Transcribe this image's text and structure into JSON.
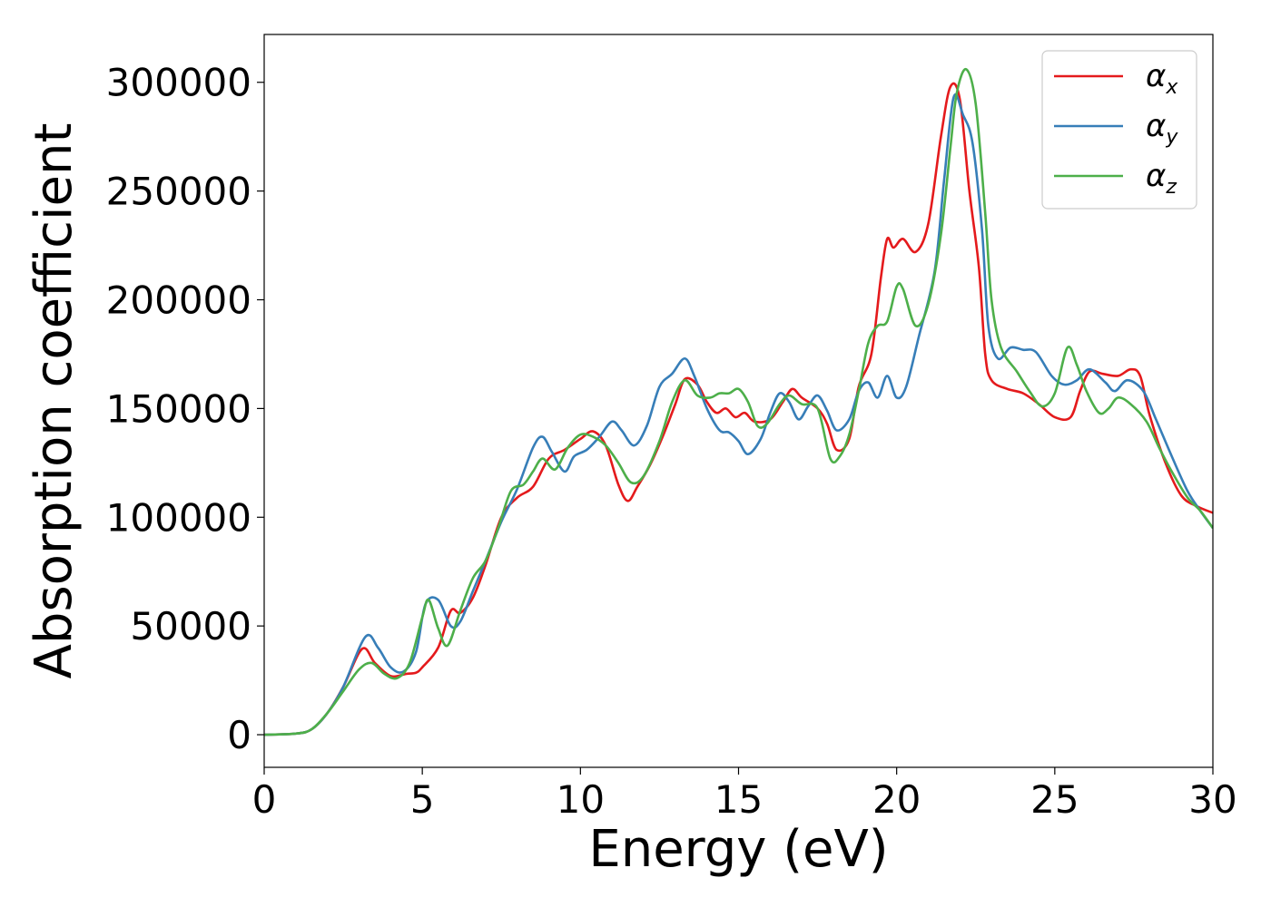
{
  "chart_data": {
    "type": "line",
    "title": "",
    "xlabel": "Energy (eV)",
    "ylabel": "Absorption coefficient",
    "xlim": [
      0,
      30
    ],
    "ylim": [
      -15000,
      322000
    ],
    "xticks": [
      0,
      5,
      10,
      15,
      20,
      25,
      30
    ],
    "yticks": [
      0,
      50000,
      100000,
      150000,
      200000,
      250000,
      300000
    ],
    "xtick_labels": [
      "0",
      "5",
      "10",
      "15",
      "20",
      "25",
      "30"
    ],
    "ytick_labels": [
      "0",
      "50000",
      "100000",
      "150000",
      "200000",
      "250000",
      "300000"
    ],
    "grid": false,
    "legend_position": "top-right",
    "series": [
      {
        "name": "α_x",
        "label_base": "α",
        "label_sub": "x",
        "color": "#e41a1c",
        "points": [
          [
            0,
            0
          ],
          [
            1,
            500
          ],
          [
            1.5,
            2500
          ],
          [
            2,
            10000
          ],
          [
            2.5,
            22000
          ],
          [
            3.1,
            39500
          ],
          [
            3.5,
            33000
          ],
          [
            4,
            27000
          ],
          [
            4.5,
            28000
          ],
          [
            4.8,
            28500
          ],
          [
            5,
            31000
          ],
          [
            5.5,
            40000
          ],
          [
            5.9,
            57000
          ],
          [
            6.2,
            56000
          ],
          [
            6.6,
            63000
          ],
          [
            7,
            78000
          ],
          [
            7.5,
            100000
          ],
          [
            8,
            109000
          ],
          [
            8.5,
            114000
          ],
          [
            9,
            127000
          ],
          [
            9.5,
            131000
          ],
          [
            10,
            136000
          ],
          [
            10.4,
            139500
          ],
          [
            10.8,
            133000
          ],
          [
            11.2,
            115000
          ],
          [
            11.5,
            107500
          ],
          [
            11.8,
            114000
          ],
          [
            12.2,
            124000
          ],
          [
            12.6,
            137000
          ],
          [
            13,
            152000
          ],
          [
            13.3,
            163500
          ],
          [
            13.7,
            161000
          ],
          [
            14,
            153000
          ],
          [
            14.3,
            148000
          ],
          [
            14.6,
            150000
          ],
          [
            14.9,
            146000
          ],
          [
            15.2,
            148000
          ],
          [
            15.5,
            144000
          ],
          [
            16,
            145000
          ],
          [
            16.4,
            153000
          ],
          [
            16.7,
            159000
          ],
          [
            17,
            155000
          ],
          [
            17.5,
            150000
          ],
          [
            17.8,
            143000
          ],
          [
            18.1,
            131000
          ],
          [
            18.5,
            136000
          ],
          [
            18.8,
            160000
          ],
          [
            19.2,
            175000
          ],
          [
            19.5,
            210000
          ],
          [
            19.7,
            228000
          ],
          [
            19.9,
            224000
          ],
          [
            20.2,
            228000
          ],
          [
            20.6,
            222000
          ],
          [
            21,
            235000
          ],
          [
            21.4,
            275000
          ],
          [
            21.7,
            298000
          ],
          [
            22,
            292000
          ],
          [
            22.3,
            250000
          ],
          [
            22.6,
            215000
          ],
          [
            22.8,
            175000
          ],
          [
            23,
            163000
          ],
          [
            23.5,
            159000
          ],
          [
            24,
            157000
          ],
          [
            24.5,
            152000
          ],
          [
            25,
            146000
          ],
          [
            25.5,
            146000
          ],
          [
            25.8,
            158000
          ],
          [
            26.1,
            167000
          ],
          [
            26.5,
            166000
          ],
          [
            27,
            165000
          ],
          [
            27.4,
            168000
          ],
          [
            27.7,
            165000
          ],
          [
            28,
            147000
          ],
          [
            28.5,
            125000
          ],
          [
            29,
            110000
          ],
          [
            29.5,
            105000
          ],
          [
            30,
            102000
          ]
        ]
      },
      {
        "name": "α_y",
        "label_base": "α",
        "label_sub": "y",
        "color": "#377eb8",
        "points": [
          [
            0,
            0
          ],
          [
            1,
            500
          ],
          [
            1.5,
            2500
          ],
          [
            2,
            10000
          ],
          [
            2.5,
            22000
          ],
          [
            3.2,
            45000
          ],
          [
            3.6,
            40000
          ],
          [
            4,
            31000
          ],
          [
            4.4,
            29000
          ],
          [
            4.8,
            38000
          ],
          [
            5.1,
            60000
          ],
          [
            5.5,
            62000
          ],
          [
            5.9,
            50000
          ],
          [
            6.2,
            52000
          ],
          [
            6.6,
            66000
          ],
          [
            7,
            80000
          ],
          [
            7.5,
            98000
          ],
          [
            8,
            113000
          ],
          [
            8.5,
            132000
          ],
          [
            8.8,
            137000
          ],
          [
            9.1,
            130000
          ],
          [
            9.5,
            121000
          ],
          [
            9.8,
            128000
          ],
          [
            10.2,
            131000
          ],
          [
            10.6,
            137000
          ],
          [
            11,
            144000
          ],
          [
            11.3,
            140000
          ],
          [
            11.7,
            133000
          ],
          [
            12.1,
            142000
          ],
          [
            12.5,
            160000
          ],
          [
            12.9,
            166000
          ],
          [
            13.3,
            173000
          ],
          [
            13.6,
            165000
          ],
          [
            14,
            150000
          ],
          [
            14.4,
            140000
          ],
          [
            14.7,
            139000
          ],
          [
            15,
            135000
          ],
          [
            15.3,
            129000
          ],
          [
            15.7,
            136000
          ],
          [
            16,
            148000
          ],
          [
            16.3,
            157000
          ],
          [
            16.6,
            153000
          ],
          [
            16.9,
            145000
          ],
          [
            17.2,
            151000
          ],
          [
            17.5,
            156000
          ],
          [
            17.8,
            149000
          ],
          [
            18.1,
            140000
          ],
          [
            18.5,
            145000
          ],
          [
            18.8,
            158000
          ],
          [
            19.1,
            162000
          ],
          [
            19.4,
            155000
          ],
          [
            19.7,
            165000
          ],
          [
            20,
            155000
          ],
          [
            20.3,
            160000
          ],
          [
            20.7,
            183000
          ],
          [
            21.2,
            213000
          ],
          [
            21.5,
            255000
          ],
          [
            21.8,
            293000
          ],
          [
            22.1,
            285000
          ],
          [
            22.4,
            272000
          ],
          [
            22.7,
            232000
          ],
          [
            22.9,
            188000
          ],
          [
            23.2,
            173000
          ],
          [
            23.6,
            178000
          ],
          [
            24,
            177000
          ],
          [
            24.4,
            176000
          ],
          [
            24.9,
            165000
          ],
          [
            25.3,
            161000
          ],
          [
            25.7,
            163000
          ],
          [
            26.1,
            168000
          ],
          [
            26.6,
            162000
          ],
          [
            26.9,
            158000
          ],
          [
            27.3,
            163000
          ],
          [
            27.8,
            158000
          ],
          [
            28.2,
            145000
          ],
          [
            28.7,
            128000
          ],
          [
            29.2,
            112000
          ],
          [
            29.6,
            103000
          ],
          [
            30,
            95000
          ]
        ]
      },
      {
        "name": "α_z",
        "label_base": "α",
        "label_sub": "z",
        "color": "#4daf4a",
        "points": [
          [
            0,
            0
          ],
          [
            1,
            500
          ],
          [
            1.5,
            2500
          ],
          [
            2,
            10000
          ],
          [
            2.5,
            20000
          ],
          [
            3,
            30000
          ],
          [
            3.4,
            33000
          ],
          [
            3.8,
            28000
          ],
          [
            4.2,
            26000
          ],
          [
            4.6,
            33000
          ],
          [
            5,
            54000
          ],
          [
            5.2,
            62000
          ],
          [
            5.5,
            49000
          ],
          [
            5.8,
            41000
          ],
          [
            6.2,
            57000
          ],
          [
            6.6,
            72000
          ],
          [
            7,
            80000
          ],
          [
            7.4,
            95000
          ],
          [
            7.8,
            112000
          ],
          [
            8.2,
            115000
          ],
          [
            8.5,
            121000
          ],
          [
            8.8,
            127000
          ],
          [
            9.2,
            122000
          ],
          [
            9.6,
            132000
          ],
          [
            10,
            138000
          ],
          [
            10.4,
            137000
          ],
          [
            10.8,
            133000
          ],
          [
            11.2,
            125000
          ],
          [
            11.6,
            116000
          ],
          [
            12,
            119000
          ],
          [
            12.5,
            135000
          ],
          [
            12.9,
            153000
          ],
          [
            13.3,
            163000
          ],
          [
            13.7,
            156000
          ],
          [
            14.1,
            155000
          ],
          [
            14.4,
            157000
          ],
          [
            14.7,
            157000
          ],
          [
            15,
            159000
          ],
          [
            15.3,
            153000
          ],
          [
            15.6,
            142000
          ],
          [
            15.9,
            143000
          ],
          [
            16.3,
            152000
          ],
          [
            16.6,
            156000
          ],
          [
            17,
            152000
          ],
          [
            17.5,
            150000
          ],
          [
            17.9,
            127000
          ],
          [
            18.2,
            128000
          ],
          [
            18.5,
            138000
          ],
          [
            18.8,
            158000
          ],
          [
            19.1,
            180000
          ],
          [
            19.4,
            188000
          ],
          [
            19.7,
            190000
          ],
          [
            20,
            206000
          ],
          [
            20.2,
            205000
          ],
          [
            20.6,
            188000
          ],
          [
            21,
            198000
          ],
          [
            21.4,
            230000
          ],
          [
            21.7,
            270000
          ],
          [
            21.9,
            295000
          ],
          [
            22.2,
            306000
          ],
          [
            22.5,
            290000
          ],
          [
            22.8,
            240000
          ],
          [
            23,
            200000
          ],
          [
            23.3,
            178000
          ],
          [
            23.8,
            167000
          ],
          [
            24.2,
            158000
          ],
          [
            24.6,
            151000
          ],
          [
            25,
            157000
          ],
          [
            25.4,
            178000
          ],
          [
            25.7,
            170000
          ],
          [
            26,
            158000
          ],
          [
            26.4,
            148000
          ],
          [
            26.7,
            150000
          ],
          [
            27,
            155000
          ],
          [
            27.4,
            152000
          ],
          [
            27.9,
            144000
          ],
          [
            28.3,
            132000
          ],
          [
            28.7,
            121000
          ],
          [
            29.2,
            109000
          ],
          [
            29.6,
            103000
          ],
          [
            30,
            95000
          ]
        ]
      }
    ]
  }
}
